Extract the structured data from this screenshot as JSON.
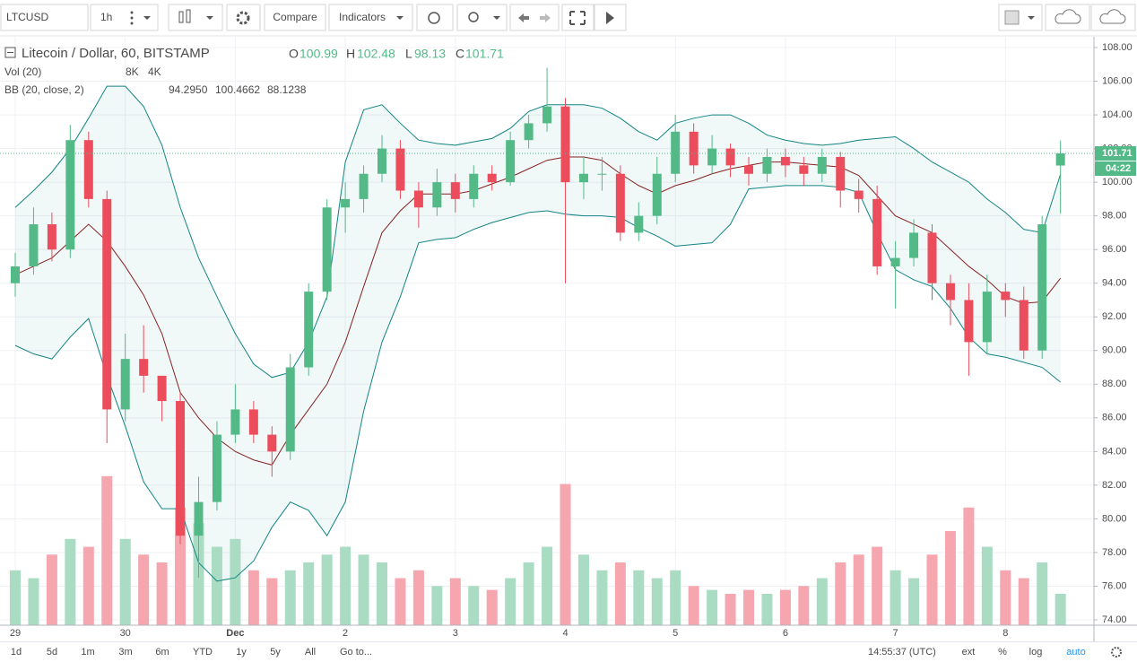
{
  "toolbar": {
    "symbol": "LTCUSD",
    "interval": "1h",
    "compare": "Compare",
    "indicators": "Indicators"
  },
  "chart_data": {
    "type": "candlestick",
    "title": "Litecoin / Dollar, 60, BITSTAMP",
    "ohlc_labels": [
      "O",
      "H",
      "L",
      "C"
    ],
    "categories": [
      "29",
      null,
      null,
      null,
      null,
      null,
      "30",
      null,
      null,
      null,
      null,
      null,
      "Dec",
      null,
      null,
      null,
      null,
      null,
      "2",
      null,
      null,
      null,
      null,
      null,
      "3",
      null,
      null,
      null,
      null,
      null,
      "4",
      null,
      null,
      null,
      null,
      null,
      "5",
      null,
      null,
      null,
      null,
      null,
      "6",
      null,
      null,
      null,
      null,
      null,
      "7",
      null,
      null,
      null,
      null,
      null,
      "8",
      null,
      null,
      null
    ],
    "open": [
      94,
      95,
      97.5,
      96,
      102.5,
      99,
      86.5,
      89.5,
      88.5,
      87,
      79,
      81,
      85,
      86.5,
      85,
      84,
      89,
      93.5,
      98.5,
      99,
      100.5,
      102,
      99.5,
      98.5,
      100,
      99,
      100.5,
      100,
      102.5,
      103.5,
      104.5,
      100,
      100.5,
      100.5,
      97,
      98,
      100.5,
      103,
      101,
      102,
      101,
      100.5,
      101.5,
      101,
      100.5,
      101.5,
      99.5,
      99,
      95,
      95.5,
      97,
      94,
      93,
      90.5,
      93.5,
      93,
      90,
      100.99
    ],
    "high": [
      95.8,
      98.5,
      98.2,
      103.4,
      103,
      99.5,
      91,
      91.5,
      88.5,
      87.5,
      82.5,
      85.8,
      88,
      87,
      85.5,
      89.8,
      94,
      99,
      100,
      101,
      102.8,
      102.5,
      100,
      100.8,
      100.5,
      101,
      101,
      103,
      104,
      106.8,
      105,
      101.5,
      101.5,
      101,
      98.8,
      101.5,
      104,
      103.5,
      102.8,
      102.3,
      101.5,
      102,
      102,
      101.5,
      102,
      101.8,
      100.2,
      99.8,
      96.5,
      97.8,
      97.5,
      94.5,
      94,
      94.5,
      94,
      93.8,
      98,
      102.48
    ],
    "low": [
      93.2,
      94.5,
      95.3,
      95.5,
      98.5,
      84.5,
      85.8,
      87.5,
      85.8,
      78.5,
      76.5,
      80.5,
      84.5,
      84.5,
      82.5,
      83.5,
      88.5,
      93,
      97,
      98.2,
      100,
      99,
      97.3,
      98,
      98.2,
      98.5,
      99.5,
      99.8,
      102,
      103,
      94,
      99,
      99.5,
      96.5,
      96.5,
      97.5,
      100,
      100.5,
      100.5,
      100.3,
      99.8,
      100,
      100.3,
      99.8,
      100,
      98.5,
      98.2,
      94.5,
      92.5,
      95,
      93,
      91.5,
      88.5,
      89.8,
      92,
      89.5,
      89.5,
      98.13
    ],
    "close": [
      95,
      97.5,
      96,
      102.5,
      99,
      86.5,
      89.5,
      88.5,
      87,
      79,
      81,
      85,
      86.5,
      85,
      84,
      89,
      93.5,
      98.5,
      99,
      100.5,
      102,
      99.5,
      98.5,
      100,
      99,
      100.5,
      100,
      102.5,
      103.5,
      104.5,
      100,
      100.5,
      100.5,
      97,
      98,
      100.5,
      103,
      101,
      102,
      101,
      100.5,
      101.5,
      101,
      100.5,
      101.5,
      99.5,
      99,
      95,
      95.5,
      97,
      94,
      93,
      90.5,
      93.5,
      93,
      90,
      97.5,
      101.71
    ],
    "up_color": "#53b987",
    "down_color": "#eb4d5c",
    "bands": {
      "name": "BB (20, close, 2)",
      "basis_color": "#872323",
      "band_color": "#138484",
      "legend": [
        {
          "value": 94.295,
          "label": "94.2950"
        },
        {
          "value": 100.4662,
          "label": "100.4662"
        },
        {
          "value": 88.1238,
          "label": "88.1238"
        }
      ],
      "upper": [
        98.5,
        99.5,
        100.6,
        102,
        103.8,
        105.7,
        105.7,
        104.5,
        102.2,
        98.5,
        95.5,
        93.2,
        91,
        89.2,
        88.4,
        88.7,
        90.5,
        93.2,
        101.2,
        104.3,
        104.6,
        103.5,
        102.5,
        102.3,
        102.2,
        102.4,
        102.6,
        103.2,
        104.2,
        104.6,
        104.6,
        104.6,
        104.4,
        103.8,
        103,
        102.5,
        103.5,
        103.8,
        104,
        104,
        103.5,
        102.8,
        102.5,
        102.3,
        102.2,
        102.3,
        102.5,
        102.6,
        102.7,
        102,
        101.2,
        100.6,
        100,
        99,
        98.2,
        97.2,
        97,
        100.4662
      ],
      "basis": [
        94.5,
        95,
        95.5,
        96.5,
        97.5,
        96.5,
        95,
        93.3,
        91,
        87.5,
        86,
        84.8,
        84,
        83.5,
        83.2,
        85,
        86.5,
        88,
        90.5,
        93.8,
        97,
        98.3,
        99.3,
        99.3,
        99.3,
        99.5,
        99.9,
        100.3,
        100.8,
        101.3,
        101.5,
        101.5,
        101.3,
        100.5,
        99.8,
        99.3,
        99.8,
        100.1,
        100.5,
        100.8,
        101,
        101.2,
        101.2,
        101.1,
        101,
        100.9,
        100.4,
        99.2,
        98,
        97.5,
        97,
        96,
        95,
        94.2,
        93.2,
        92.8,
        92.9,
        94.295
      ],
      "lower": [
        90.3,
        89.8,
        89.5,
        90.8,
        91.9,
        88.5,
        85.5,
        82.2,
        80.6,
        80.6,
        77.4,
        76.3,
        76.5,
        77.5,
        79.5,
        81,
        80.5,
        79,
        81,
        86.4,
        90.5,
        93.2,
        96.4,
        96.6,
        96.7,
        97.2,
        97.6,
        97.9,
        98.2,
        98.3,
        98.1,
        98,
        98,
        97.9,
        97.3,
        96.8,
        96.2,
        96.3,
        96.4,
        97.5,
        99.6,
        99.7,
        99.8,
        99.8,
        99.8,
        99.7,
        99.4,
        97,
        94.8,
        94.2,
        93.8,
        92.5,
        90.8,
        89.8,
        89.6,
        89.3,
        89,
        88.1238
      ]
    },
    "volume": {
      "name": "Vol (20)",
      "axis": "y2",
      "up_color": "#a9dcc3",
      "down_color": "#f5a6ae",
      "legend": [
        {
          "value": 8000,
          "label": "8K",
          "color": "#53b987"
        },
        {
          "value": 4000,
          "label": "4K",
          "color": "#ff7f0e"
        }
      ],
      "values": [
        14000,
        12000,
        18000,
        22000,
        20000,
        38000,
        22000,
        18000,
        16000,
        30000,
        26000,
        20000,
        22000,
        14000,
        12000,
        14000,
        16000,
        18000,
        20000,
        18000,
        16000,
        12000,
        14000,
        10000,
        12000,
        10000,
        9000,
        12000,
        16000,
        20000,
        36000,
        18000,
        14000,
        16000,
        14000,
        12000,
        14000,
        10000,
        9000,
        8000,
        9000,
        8000,
        9000,
        10000,
        12000,
        16000,
        18000,
        20000,
        14000,
        12000,
        18000,
        24000,
        30000,
        20000,
        14000,
        12000,
        16000,
        8000
      ]
    },
    "ylim": [
      73.68,
      108.64
    ],
    "yticks": [
      {
        "value": 74,
        "label": "74.00"
      },
      {
        "value": 76,
        "label": "76.00"
      },
      {
        "value": 78,
        "label": "78.00"
      },
      {
        "value": 80,
        "label": "80.00"
      },
      {
        "value": 82,
        "label": "82.00"
      },
      {
        "value": 84,
        "label": "84.00"
      },
      {
        "value": 86,
        "label": "86.00"
      },
      {
        "value": 88,
        "label": "88.00"
      },
      {
        "value": 90,
        "label": "90.00"
      },
      {
        "value": 92,
        "label": "92.00"
      },
      {
        "value": 94,
        "label": "94.00"
      },
      {
        "value": 96,
        "label": "96.00"
      },
      {
        "value": 98,
        "label": "98.00"
      },
      {
        "value": 100,
        "label": "100.00"
      },
      {
        "value": 102,
        "label": "102.00"
      },
      {
        "value": 104,
        "label": "104.00"
      },
      {
        "value": 106,
        "label": "106.00"
      },
      {
        "value": 108,
        "label": "108.00"
      }
    ],
    "y2lim": [
      0,
      150000
    ],
    "grid": true,
    "countdown": "04:22"
  },
  "bottom_bar": {
    "ranges": [
      "1d",
      "5d",
      "1m",
      "3m",
      "6m",
      "YTD",
      "1y",
      "5y",
      "All"
    ],
    "goto": "Go to...",
    "clock": "14:55:37 (UTC)",
    "options": [
      "ext",
      "%",
      "log",
      "auto"
    ]
  }
}
